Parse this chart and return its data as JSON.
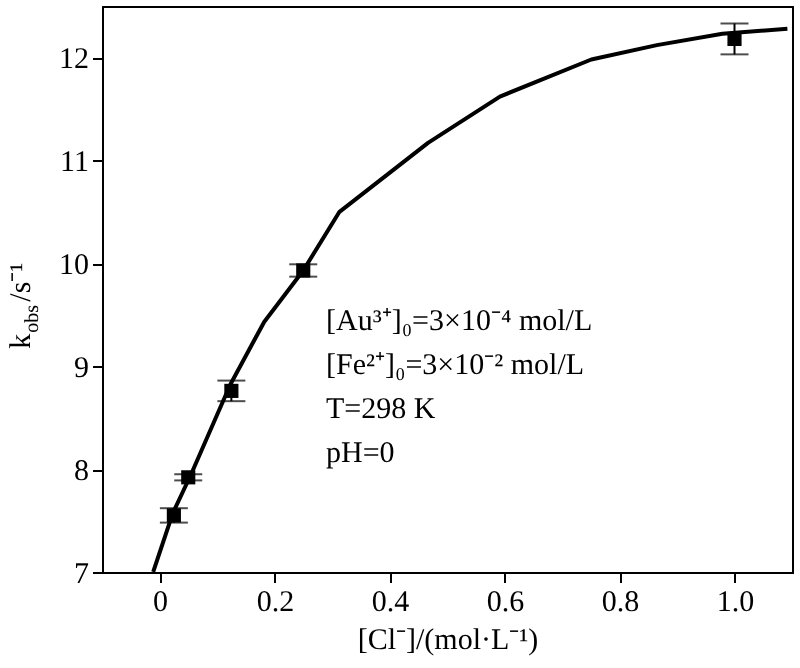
{
  "chart_data": {
    "type": "scatter",
    "xlabel": "[Cl⁻]/(mol·L⁻¹)",
    "ylabel": "k$_{obs}$/s⁻¹",
    "xlim": [
      -0.1,
      1.1
    ],
    "ylim": [
      7,
      12.5
    ],
    "xticks": [
      0,
      0.2,
      0.4,
      0.6,
      0.8,
      {
        "value": 1,
        "label": "1.0"
      }
    ],
    "yticks": [
      7,
      8,
      9,
      10,
      11,
      12
    ],
    "series": [
      {
        "color": "#000000",
        "marker": "square",
        "x": [
          0.025,
          0.05,
          0.125,
          0.25,
          1.0
        ],
        "values": [
          7.55,
          7.92,
          8.76,
          9.93,
          12.18
        ],
        "errors": [
          0.07,
          0.03,
          0.1,
          0.06,
          0.15
        ]
      },
      {
        "type": "line",
        "color": "#000000",
        "line_style": "solid",
        "x": [
          -0.011,
          0.023,
          0.055,
          0.123,
          0.182,
          0.25,
          0.313,
          0.467,
          0.592,
          0.751,
          0.865,
          0.979,
          1.092
        ],
        "values": [
          7.0,
          7.57,
          7.95,
          8.82,
          9.43,
          9.93,
          10.5,
          11.17,
          11.62,
          11.98,
          12.12,
          12.23,
          12.28
        ]
      }
    ],
    "annotations": [
      "[Au³⁺]₀=3×10⁻⁴ mol/L",
      "[Fe²⁺]₀=3×10⁻² mol/L",
      "T=298 K",
      "pH=0"
    ]
  }
}
